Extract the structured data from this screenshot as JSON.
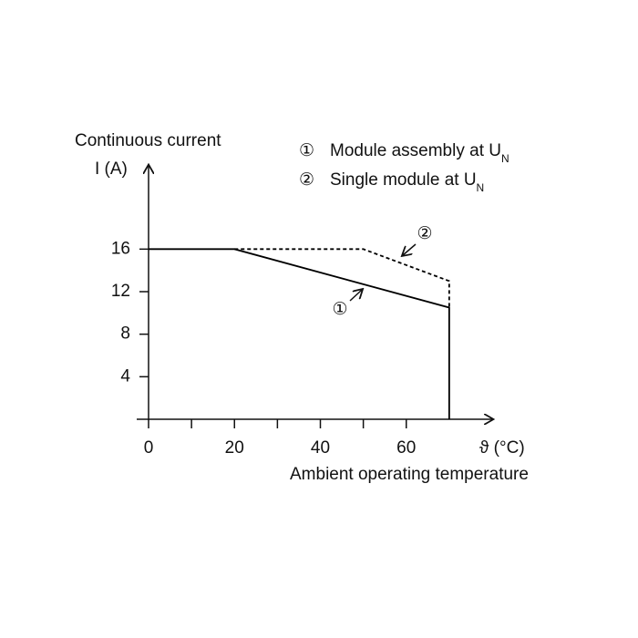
{
  "chart_data": {
    "type": "line",
    "y_label": [
      "Continuous current",
      "I (A)"
    ],
    "x_unit_label": "ϑ (°C)",
    "x_label": "Ambient operating temperature",
    "xlim": [
      0,
      80
    ],
    "xticks": [
      0,
      20,
      40,
      60
    ],
    "x_minor_ticks": [
      10,
      30,
      50
    ],
    "ylim": [
      0,
      24
    ],
    "yticks": [
      4,
      8,
      12,
      16
    ],
    "series": [
      {
        "marker": "①",
        "name": "Module assembly at U",
        "name_subscript": "N",
        "color": "#000000",
        "dash": false,
        "x": [
          0,
          20,
          70,
          70
        ],
        "values": [
          16,
          16,
          10.5,
          0
        ]
      },
      {
        "marker": "②",
        "name": "Single module at U",
        "name_subscript": "N",
        "color": "#000000",
        "dash": true,
        "x": [
          20,
          50,
          70,
          70
        ],
        "values": [
          16,
          16,
          13,
          10.5
        ]
      }
    ]
  }
}
